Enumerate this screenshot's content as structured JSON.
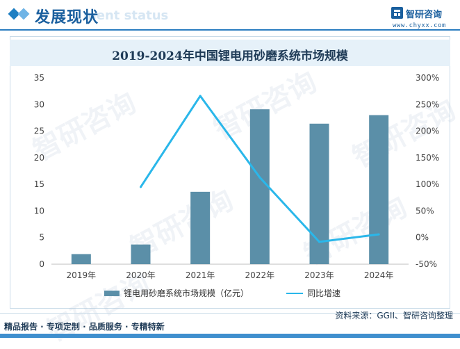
{
  "header": {
    "title": "发展现状",
    "subtitle": "ment status",
    "brand_name": "智研咨询",
    "brand_url": "www.chyxx.com"
  },
  "watermark_text": "智研咨询",
  "chart_data": {
    "type": "bar",
    "title": "2019-2024年中国锂电用砂磨系统市场规模",
    "categories": [
      "2019年",
      "2020年",
      "2021年",
      "2022年",
      "2023年",
      "2024年"
    ],
    "series": [
      {
        "name": "锂电用砂磨系统市场规模（亿元）",
        "type": "bar",
        "axis": "left",
        "color": "#5b8fa8",
        "values": [
          1.9,
          3.7,
          13.6,
          29.1,
          26.4,
          28.0
        ]
      },
      {
        "name": "同比增速",
        "type": "line",
        "axis": "right",
        "color": "#2ab7ea",
        "values": [
          null,
          95,
          266,
          113,
          -8,
          6
        ]
      }
    ],
    "y_left": {
      "ylim": [
        0,
        35
      ],
      "ticks": [
        "0",
        "5",
        "10",
        "15",
        "20",
        "25",
        "30",
        "35"
      ]
    },
    "y_right": {
      "ylim": [
        -50,
        300
      ],
      "ticks": [
        "-50%",
        "0%",
        "50%",
        "100%",
        "150%",
        "200%",
        "250%",
        "300%"
      ]
    },
    "grid": false,
    "legend": "bottom"
  },
  "footer": {
    "left": "精品报告 · 专项定制 · 品质服务 · 专精特新",
    "source": "资料来源：GGII、智研咨询整理"
  }
}
